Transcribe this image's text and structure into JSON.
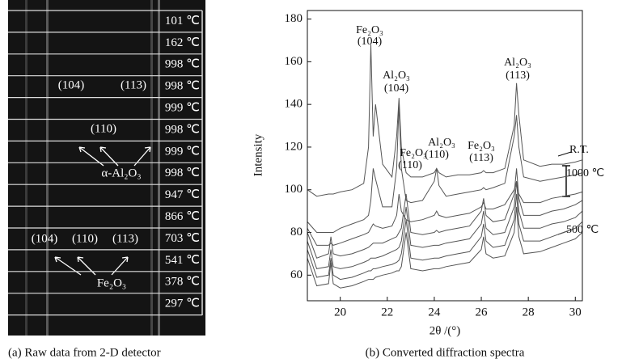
{
  "panel_a": {
    "rows": [
      "101 ℃",
      "162 ℃",
      "998 ℃",
      "998 ℃",
      "999 ℃",
      "998 ℃",
      "999 ℃",
      "998 ℃",
      "947 ℃",
      "866 ℃",
      "703 ℃",
      "541 ℃",
      "378 ℃",
      "297 ℃"
    ],
    "annotations": [
      "(104)",
      "(113)",
      "(110)",
      "α-Al₂O₃",
      "(104)",
      "(110)",
      "(113)",
      "Fe₂O₃"
    ],
    "caption": "(a) Raw data from 2-D detector"
  },
  "chart_data": {
    "type": "line",
    "caption": "(b) Converted diffraction spectra",
    "xlabel": "2θ /(°)",
    "ylabel": "Intensity",
    "x": [
      18.6,
      19.0,
      19.5,
      19.6,
      19.7,
      20.0,
      20.5,
      21.0,
      21.2,
      21.3,
      21.4,
      21.5,
      21.8,
      22.2,
      22.4,
      22.5,
      22.6,
      22.8,
      23.0,
      23.5,
      24.0,
      24.1,
      24.2,
      24.5,
      25.0,
      25.5,
      26.0,
      26.1,
      26.2,
      26.5,
      27.0,
      27.4,
      27.5,
      27.6,
      27.8,
      28.5,
      29.0,
      29.5,
      30.0,
      30.3
    ],
    "series": [
      {
        "color": "#555555",
        "values": [
          100,
          97,
          98,
          98,
          98,
          99,
          100,
          103,
          120,
          168,
          125,
          140,
          112,
          106,
          125,
          143,
          120,
          108,
          106,
          106,
          108,
          110,
          108,
          106,
          107,
          107,
          108,
          109,
          108,
          108,
          110,
          130,
          150,
          135,
          114,
          111,
          112,
          112,
          113,
          114
        ]
      },
      {
        "color": "#555555",
        "values": [
          85,
          80,
          80,
          80,
          80,
          82,
          84,
          86,
          88,
          95,
          110,
          105,
          92,
          92,
          110,
          140,
          110,
          95,
          94,
          95,
          104,
          110,
          102,
          97,
          98,
          99,
          100,
          101,
          100,
          101,
          103,
          125,
          135,
          120,
          106,
          104,
          105,
          106,
          107,
          108
        ]
      },
      {
        "color": "#555555",
        "values": [
          82,
          74,
          74,
          75,
          74,
          75,
          77,
          79,
          80,
          82,
          84,
          83,
          82,
          83,
          88,
          98,
          90,
          86,
          85,
          86,
          88,
          90,
          88,
          87,
          88,
          89,
          92,
          94,
          91,
          91,
          93,
          100,
          104,
          98,
          94,
          94,
          96,
          97,
          98,
          99
        ]
      },
      {
        "color": "#555555",
        "values": [
          80,
          68,
          70,
          78,
          70,
          69,
          70,
          72,
          73,
          74,
          75,
          75,
          75,
          77,
          78,
          80,
          82,
          98,
          80,
          79,
          80,
          81,
          80,
          81,
          82,
          83,
          90,
          96,
          88,
          85,
          86,
          98,
          110,
          96,
          88,
          88,
          90,
          91,
          93,
          95
        ]
      },
      {
        "color": "#555555",
        "values": [
          76,
          63,
          64,
          72,
          64,
          63,
          64,
          66,
          67,
          68,
          68,
          68,
          69,
          71,
          72,
          73,
          76,
          92,
          74,
          73,
          74,
          74,
          74,
          75,
          76,
          77,
          84,
          90,
          82,
          79,
          80,
          92,
          104,
          90,
          82,
          82,
          84,
          85,
          87,
          90
        ]
      },
      {
        "color": "#555555",
        "values": [
          72,
          59,
          60,
          68,
          60,
          58,
          59,
          61,
          62,
          62,
          63,
          63,
          64,
          65,
          66,
          67,
          70,
          86,
          68,
          67,
          68,
          68,
          68,
          69,
          70,
          71,
          78,
          84,
          76,
          73,
          74,
          86,
          98,
          84,
          76,
          76,
          78,
          80,
          82,
          85
        ]
      },
      {
        "color": "#555555",
        "values": [
          68,
          55,
          56,
          66,
          56,
          54,
          55,
          57,
          58,
          58,
          58,
          59,
          60,
          61,
          62,
          62,
          64,
          80,
          63,
          62,
          63,
          63,
          63,
          64,
          65,
          66,
          72,
          78,
          70,
          68,
          69,
          80,
          92,
          78,
          70,
          71,
          73,
          75,
          77,
          80
        ]
      }
    ],
    "xlim": [
      18.6,
      30.3
    ],
    "ylim": [
      48,
      184
    ],
    "xticks": [
      20,
      22,
      24,
      26,
      28,
      30
    ],
    "yticks": [
      60,
      80,
      100,
      120,
      140,
      160,
      180
    ],
    "annotations": [
      "Fe₂O₃",
      "(104)",
      "Al₂O₃",
      "(104)",
      "Fe₂O₃",
      "(110)",
      "Al₂O₃",
      "(110)",
      "Fe₂O₃",
      "(113)",
      "Al₂O₃",
      "(113)",
      "R.T.",
      "1000 ℃",
      "500 ℃"
    ]
  }
}
